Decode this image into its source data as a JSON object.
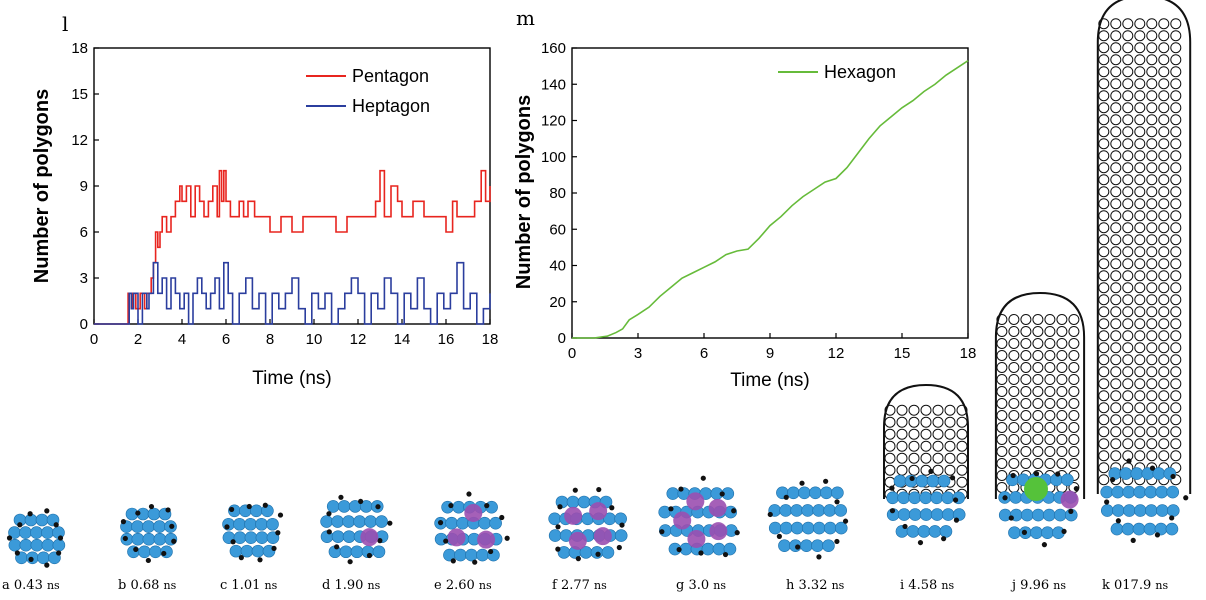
{
  "panels": {
    "l": "l",
    "m": "m"
  },
  "chart_data": [
    {
      "id": "l",
      "type": "line",
      "xlabel": "Time (ns)",
      "ylabel": "Number of  polygons",
      "xlim": [
        0,
        18
      ],
      "ylim": [
        0,
        18
      ],
      "xticks": [
        0,
        2,
        4,
        6,
        8,
        10,
        12,
        14,
        16,
        18
      ],
      "yticks": [
        0,
        3,
        6,
        9,
        12,
        15,
        18
      ],
      "legend_position": "top-right",
      "series": [
        {
          "name": "Pentagon",
          "color": "#e8251f",
          "x": [
            0,
            1.5,
            1.55,
            1.7,
            1.75,
            1.9,
            2.1,
            2.3,
            2.4,
            2.6,
            2.7,
            2.8,
            2.9,
            3.0,
            3.1,
            3.3,
            3.5,
            3.7,
            3.9,
            4.0,
            4.2,
            4.4,
            4.6,
            4.8,
            5.0,
            5.2,
            5.4,
            5.6,
            5.7,
            5.8,
            5.9,
            6.0,
            6.2,
            6.4,
            6.6,
            6.8,
            7.0,
            7.3,
            7.6,
            8.0,
            8.5,
            9.0,
            9.5,
            10.0,
            10.5,
            11.0,
            11.5,
            12.0,
            12.5,
            12.8,
            13.0,
            13.2,
            13.5,
            13.8,
            14.0,
            14.5,
            15.0,
            15.5,
            16.0,
            16.3,
            16.5,
            16.8,
            17.0,
            17.3,
            17.6,
            17.8,
            18.0
          ],
          "y": [
            0,
            0,
            2,
            1,
            2,
            1,
            2,
            1,
            2,
            3,
            4,
            6,
            5,
            6,
            7,
            6,
            7,
            8,
            9,
            8,
            9,
            7,
            9,
            8,
            7,
            8,
            9,
            7,
            10,
            8,
            10,
            8,
            7,
            7,
            8,
            7,
            8,
            7,
            7,
            6,
            7,
            6,
            7,
            7,
            7,
            6,
            7,
            7,
            7,
            8,
            10,
            7,
            9,
            8,
            7,
            8,
            7,
            7,
            6,
            8,
            7,
            7,
            7,
            8,
            10,
            8,
            9
          ]
        },
        {
          "name": "Heptagon",
          "color": "#2b3e9e",
          "x": [
            0,
            1.5,
            1.6,
            1.7,
            1.8,
            2.0,
            2.2,
            2.4,
            2.5,
            2.7,
            2.9,
            3.1,
            3.3,
            3.5,
            3.7,
            3.9,
            4.1,
            4.3,
            4.5,
            4.7,
            4.9,
            5.1,
            5.3,
            5.5,
            5.7,
            5.9,
            6.1,
            6.3,
            6.6,
            6.9,
            7.2,
            7.5,
            7.8,
            8.1,
            8.4,
            8.7,
            9.0,
            9.3,
            9.6,
            9.9,
            10.2,
            10.5,
            10.8,
            11.1,
            11.4,
            11.7,
            12.0,
            12.3,
            12.6,
            12.9,
            13.2,
            13.5,
            13.8,
            14.1,
            14.4,
            14.7,
            15.0,
            15.3,
            15.6,
            15.9,
            16.2,
            16.5,
            16.8,
            17.1,
            17.4,
            17.7,
            18.0
          ],
          "y": [
            0,
            0,
            2,
            1,
            2,
            0,
            2,
            1,
            2,
            4,
            2,
            3,
            1,
            3,
            2,
            1,
            2,
            0,
            2,
            3,
            2,
            1,
            2,
            3,
            1,
            4,
            2,
            0,
            2,
            3,
            1,
            2,
            0,
            2,
            1,
            2,
            3,
            1,
            0,
            2,
            1,
            2,
            0,
            1,
            2,
            3,
            2,
            0,
            2,
            1,
            3,
            2,
            0,
            2,
            1,
            3,
            1,
            0,
            2,
            1,
            2,
            4,
            1,
            2,
            0,
            1,
            2
          ]
        }
      ]
    },
    {
      "id": "m",
      "type": "line",
      "xlabel": "Time (ns)",
      "ylabel": "Number of  polygons",
      "xlim": [
        0,
        18
      ],
      "ylim": [
        0,
        160
      ],
      "xticks": [
        0,
        3,
        6,
        9,
        12,
        15,
        18
      ],
      "yticks": [
        0,
        20,
        40,
        60,
        80,
        100,
        120,
        140,
        160
      ],
      "legend_position": "top-right",
      "series": [
        {
          "name": "Hexagon",
          "color": "#66bb3a",
          "x": [
            0,
            1.0,
            1.6,
            2.0,
            2.3,
            2.6,
            3.0,
            3.5,
            4.0,
            4.5,
            5.0,
            5.5,
            6.0,
            6.5,
            7.0,
            7.5,
            8.0,
            8.5,
            9.0,
            9.5,
            10.0,
            10.5,
            11.0,
            11.5,
            12.0,
            12.5,
            13.0,
            13.5,
            14.0,
            14.5,
            15.0,
            15.5,
            16.0,
            16.5,
            17.0,
            17.5,
            18.0
          ],
          "y": [
            0,
            0,
            1,
            3,
            5,
            10,
            13,
            17,
            23,
            28,
            33,
            36,
            39,
            42,
            46,
            48,
            49,
            55,
            62,
            67,
            73,
            78,
            82,
            86,
            88,
            94,
            102,
            110,
            117,
            122,
            127,
            131,
            136,
            140,
            145,
            149,
            153
          ]
        }
      ]
    }
  ],
  "snapshots": [
    {
      "letter": "a",
      "time": "0.43",
      "unit": "ns"
    },
    {
      "letter": "b",
      "time": "0.68",
      "unit": "ns"
    },
    {
      "letter": "c",
      "time": "1.01",
      "unit": "ns"
    },
    {
      "letter": "d",
      "time": "1.90",
      "unit": "ns"
    },
    {
      "letter": "e",
      "time": "2.60",
      "unit": "ns"
    },
    {
      "letter": "f",
      "time": "2.77",
      "unit": "ns"
    },
    {
      "letter": "g",
      "time": "3.0",
      "unit": "ns"
    },
    {
      "letter": "h",
      "time": "3.32",
      "unit": "ns"
    },
    {
      "letter": "i",
      "time": "4.58",
      "unit": "ns"
    },
    {
      "letter": "j",
      "time": "9.96",
      "unit": "ns"
    },
    {
      "letter": "k",
      "time": "017.9",
      "unit": "ns"
    }
  ],
  "colors": {
    "metal": "#3b9ad9",
    "carbon": "#111111",
    "pentagon": "#9b4fb0",
    "hexagon": "#55c23a"
  }
}
